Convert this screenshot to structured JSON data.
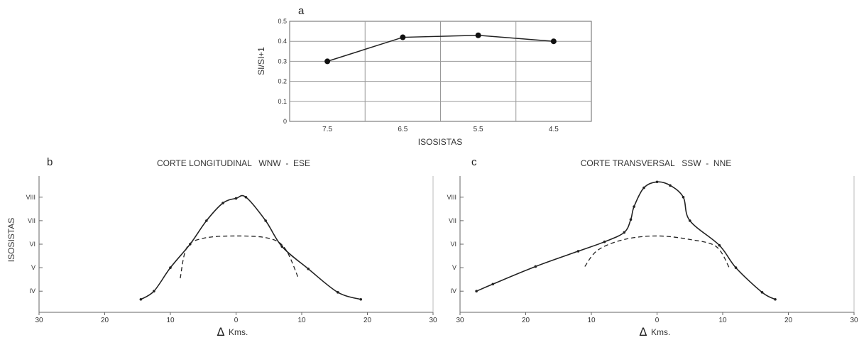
{
  "chart_data": [
    {
      "panel_label": "a",
      "type": "line",
      "xlabel": "ISOSISTAS",
      "ylabel": "SI/SI+1",
      "categories": [
        "7.5",
        "6.5",
        "5.5",
        "4.5"
      ],
      "values": [
        0.3,
        0.42,
        0.43,
        0.4
      ],
      "yticks": [
        "0",
        "0.1",
        "0.2",
        "0.3",
        "0.4",
        "0.5"
      ],
      "ylim": [
        0,
        0.5
      ],
      "grid": true
    },
    {
      "panel_label": "b",
      "type": "line",
      "title": "CORTE LONGITUDINAL   WNW  -  ESE",
      "xlabel": "Kms.",
      "xlabel_symbol": "Δ",
      "ylabel": "ISOSISTAS",
      "xticks": [
        "30",
        "20",
        "10",
        "0",
        "10",
        "20",
        "30"
      ],
      "yticks": [
        "VIII",
        "VII",
        "VI",
        "V",
        "IV"
      ],
      "ytick_values": [
        8,
        7,
        6,
        5,
        4
      ],
      "xlim": [
        -30,
        30
      ],
      "ylim": [
        3.1,
        8.9
      ],
      "series": [
        {
          "style": "solid",
          "x": [
            -14.5,
            -12.5,
            -10,
            -7,
            -4.5,
            -2,
            0,
            1.5,
            4.5,
            7,
            11,
            15.5,
            19
          ],
          "y": [
            3.65,
            4.0,
            5.0,
            6.0,
            7.0,
            7.75,
            7.95,
            8.0,
            7.0,
            5.9,
            4.95,
            3.95,
            3.65
          ]
        },
        {
          "style": "dashed",
          "x": [
            -8.5,
            -7.5,
            -5,
            0,
            5,
            7.5,
            9.5
          ],
          "y": [
            4.55,
            5.85,
            6.25,
            6.35,
            6.25,
            5.8,
            4.55
          ]
        }
      ]
    },
    {
      "panel_label": "c",
      "type": "line",
      "title": "CORTE TRANSVERSAL   SSW  -  NNE",
      "xlabel": "Kms.",
      "xlabel_symbol": "Δ",
      "xticks": [
        "30",
        "20",
        "10",
        "0",
        "10",
        "20",
        "30"
      ],
      "yticks": [
        "VIII",
        "VII",
        "VI",
        "V",
        "IV"
      ],
      "ytick_values": [
        8,
        7,
        6,
        5,
        4
      ],
      "xlim": [
        -30,
        30
      ],
      "ylim": [
        3.1,
        8.9
      ],
      "series": [
        {
          "style": "solid",
          "x": [
            -27.5,
            -25,
            -18.5,
            -12,
            -8,
            -5,
            -4,
            -3.5,
            -2,
            0,
            2,
            4,
            5,
            9.5,
            12,
            16,
            18
          ],
          "y": [
            4.0,
            4.3,
            5.05,
            5.7,
            6.1,
            6.5,
            7.05,
            7.6,
            8.4,
            8.65,
            8.5,
            8.0,
            7.0,
            5.95,
            5.0,
            3.95,
            3.65
          ]
        },
        {
          "style": "dashed",
          "x": [
            -11,
            -9,
            -5,
            0,
            5,
            9,
            11
          ],
          "y": [
            5.05,
            5.75,
            6.2,
            6.35,
            6.2,
            5.9,
            5.0
          ]
        }
      ]
    }
  ]
}
